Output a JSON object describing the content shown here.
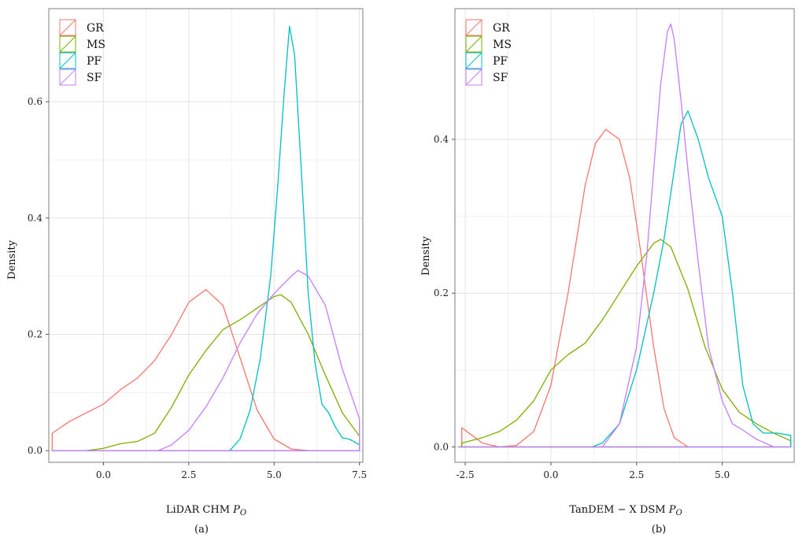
{
  "chart_data": [
    {
      "type": "line",
      "panel_label": "(a)",
      "title": "",
      "xlabel": "LiDAR CHM P_O",
      "xlabel_main": "LiDAR CHM ",
      "xlabel_italic": "P",
      "xlabel_sub": "O",
      "ylabel": "Density",
      "xlim": [
        -1.6,
        7.6
      ],
      "ylim": [
        -0.02,
        0.76
      ],
      "xticks": [
        0.0,
        2.5,
        5.0,
        7.5
      ],
      "xtick_labels": [
        "0.0",
        "2.5",
        "5.0",
        "7.5"
      ],
      "yticks": [
        0.0,
        0.2,
        0.4,
        0.6
      ],
      "ytick_labels": [
        "0.0",
        "0.2",
        "0.4",
        "0.6"
      ],
      "grid": true,
      "legend_position": "top-left",
      "series": [
        {
          "name": "GR",
          "color": "#f8766d",
          "x": [
            -1.5,
            -1.0,
            -0.5,
            0.0,
            0.5,
            1.0,
            1.5,
            2.0,
            2.5,
            3.0,
            3.5,
            4.0,
            4.5,
            5.0,
            5.5,
            6.0
          ],
          "y": [
            0.03,
            0.05,
            0.065,
            0.08,
            0.105,
            0.125,
            0.155,
            0.2,
            0.255,
            0.277,
            0.25,
            0.16,
            0.07,
            0.02,
            0.003,
            0.0
          ]
        },
        {
          "name": "MS",
          "color": "#7cae00",
          "x": [
            -0.5,
            0.0,
            0.5,
            1.0,
            1.5,
            2.0,
            2.5,
            3.0,
            3.5,
            4.0,
            4.5,
            5.0,
            5.2,
            5.5,
            6.0,
            6.5,
            7.0,
            7.5
          ],
          "y": [
            0.0,
            0.004,
            0.012,
            0.016,
            0.03,
            0.075,
            0.13,
            0.172,
            0.208,
            0.225,
            0.245,
            0.265,
            0.268,
            0.255,
            0.2,
            0.13,
            0.065,
            0.025
          ]
        },
        {
          "name": "PF",
          "color": "#00bfc4",
          "x": [
            3.7,
            4.0,
            4.3,
            4.6,
            4.9,
            5.1,
            5.3,
            5.45,
            5.6,
            5.8,
            6.0,
            6.2,
            6.4,
            6.6,
            6.8,
            7.0,
            7.2,
            7.5
          ],
          "y": [
            0.0,
            0.02,
            0.07,
            0.16,
            0.3,
            0.45,
            0.62,
            0.73,
            0.68,
            0.48,
            0.27,
            0.15,
            0.08,
            0.065,
            0.04,
            0.022,
            0.02,
            0.01
          ]
        },
        {
          "name": "SF",
          "color": "#c77cff",
          "x": [
            1.6,
            2.0,
            2.5,
            3.0,
            3.5,
            4.0,
            4.5,
            5.0,
            5.5,
            5.7,
            6.0,
            6.5,
            7.0,
            7.5
          ],
          "y": [
            0.0,
            0.01,
            0.035,
            0.075,
            0.125,
            0.185,
            0.235,
            0.27,
            0.3,
            0.31,
            0.3,
            0.25,
            0.14,
            0.055
          ]
        }
      ]
    },
    {
      "type": "line",
      "panel_label": "(b)",
      "title": "",
      "xlabel": "TanDEM − X DSM P_O",
      "xlabel_main": "TanDEM − X DSM ",
      "xlabel_italic": "P",
      "xlabel_sub": "O",
      "ylabel": "Density",
      "xlim": [
        -2.8,
        7.1
      ],
      "ylim": [
        -0.02,
        0.57
      ],
      "xticks": [
        -2.5,
        0.0,
        2.5,
        5.0
      ],
      "xtick_labels": [
        "-2.5",
        "0.0",
        "2.5",
        "5.0"
      ],
      "yticks": [
        0.0,
        0.2,
        0.4
      ],
      "ytick_labels": [
        "0.0",
        "0.2",
        "0.4"
      ],
      "grid": true,
      "legend_position": "top-left",
      "series": [
        {
          "name": "GR",
          "color": "#f8766d",
          "x": [
            -2.6,
            -2.3,
            -2.0,
            -1.5,
            -1.0,
            -0.5,
            0.0,
            0.5,
            1.0,
            1.3,
            1.6,
            2.0,
            2.3,
            2.6,
            3.0,
            3.3,
            3.6,
            4.0
          ],
          "y": [
            0.025,
            0.015,
            0.005,
            0.0,
            0.002,
            0.02,
            0.08,
            0.2,
            0.34,
            0.395,
            0.413,
            0.4,
            0.35,
            0.26,
            0.13,
            0.05,
            0.012,
            0.0
          ]
        },
        {
          "name": "MS",
          "color": "#7cae00",
          "x": [
            -2.6,
            -2.0,
            -1.5,
            -1.0,
            -0.5,
            0.0,
            0.5,
            1.0,
            1.5,
            2.0,
            2.5,
            3.0,
            3.2,
            3.5,
            4.0,
            4.5,
            5.0,
            5.5,
            6.0,
            6.5,
            7.0
          ],
          "y": [
            0.005,
            0.012,
            0.02,
            0.035,
            0.06,
            0.1,
            0.12,
            0.135,
            0.165,
            0.2,
            0.235,
            0.265,
            0.27,
            0.26,
            0.205,
            0.13,
            0.075,
            0.045,
            0.03,
            0.018,
            0.008
          ]
        },
        {
          "name": "PF",
          "color": "#00bfc4",
          "x": [
            1.2,
            1.5,
            2.0,
            2.5,
            3.0,
            3.3,
            3.6,
            3.8,
            4.0,
            4.3,
            4.6,
            5.0,
            5.3,
            5.6,
            5.9,
            6.2,
            6.6,
            7.0
          ],
          "y": [
            0.0,
            0.005,
            0.03,
            0.1,
            0.2,
            0.27,
            0.36,
            0.42,
            0.437,
            0.4,
            0.35,
            0.3,
            0.2,
            0.08,
            0.03,
            0.018,
            0.018,
            0.015
          ]
        },
        {
          "name": "SF",
          "color": "#c77cff",
          "x": [
            -2.6,
            1.5,
            2.0,
            2.5,
            2.8,
            3.0,
            3.2,
            3.4,
            3.5,
            3.6,
            3.8,
            4.0,
            4.3,
            4.6,
            5.0,
            5.3,
            5.6,
            6.0,
            6.5,
            7.0
          ],
          "y": [
            0.0,
            0.0,
            0.03,
            0.13,
            0.25,
            0.36,
            0.47,
            0.54,
            0.55,
            0.53,
            0.45,
            0.36,
            0.24,
            0.13,
            0.06,
            0.03,
            0.022,
            0.01,
            0.0,
            0.0
          ]
        }
      ]
    }
  ]
}
